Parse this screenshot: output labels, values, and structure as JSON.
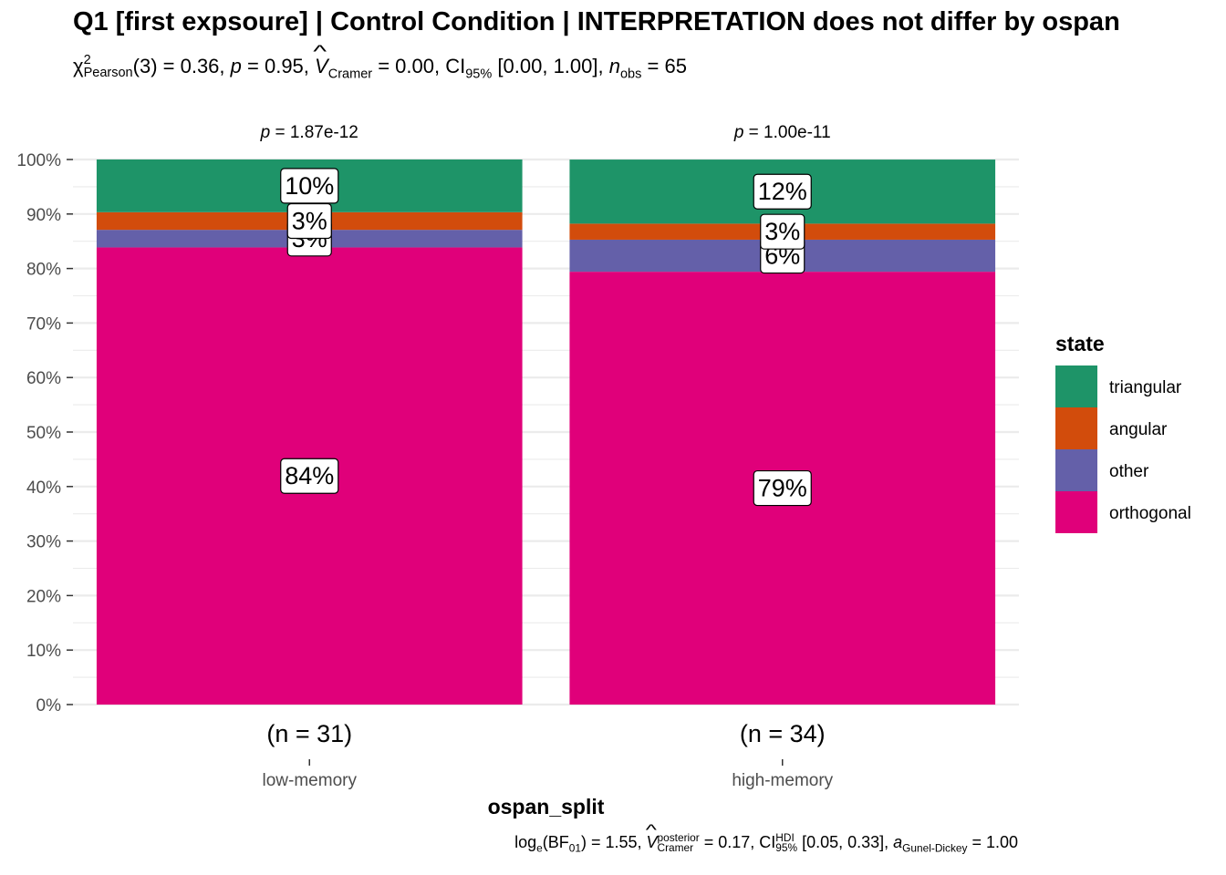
{
  "title": "Q1 [first expsoure] | Control Condition | INTERPRETATION does not differ by ospan",
  "subtitle": {
    "chi_label": "χ",
    "chi_sup": "2",
    "chi_sub": "Pearson",
    "df": "(3) = 0.36, ",
    "p_sym": "p",
    "p_val": " = 0.95, ",
    "v_sym": "V",
    "v_sub": "Cramer",
    "v_val": " = 0.00, CI",
    "ci_sub": "95%",
    "ci_val": " [0.00, 1.00], ",
    "n_sym": "n",
    "n_sub": "obs",
    "n_val": " = 65"
  },
  "caption": {
    "log_label": "log",
    "log_sub": "e",
    "bf_open": "(BF",
    "bf_sub": "01",
    "bf_val": ") = 1.55, ",
    "v_sym": "V",
    "v_sup": "posterior",
    "v_sub": "Cramer",
    "v_val": " = 0.17, CI",
    "ci_sup": "HDI",
    "ci_sub": "95%",
    "ci_val": " [0.05, 0.33], ",
    "a_sym": "a",
    "a_sub": "Gunel-Dickey",
    "a_val": " = 1.00"
  },
  "chart_data": {
    "type": "bar",
    "stacked": true,
    "percent": true,
    "categories": [
      "low-memory",
      "high-memory"
    ],
    "n_labels": [
      "(n = 31)",
      "(n = 34)"
    ],
    "p_labels": [
      {
        "sym": "p",
        "val": " = 1.87e-12"
      },
      {
        "sym": "p",
        "val": " = 1.00e-11"
      }
    ],
    "series": [
      {
        "name": "orthogonal",
        "color": "#E7298A",
        "fill": "#E0007A",
        "values": [
          84,
          79
        ],
        "labels": [
          "84%",
          "79%"
        ]
      },
      {
        "name": "other",
        "color": "#6460A9",
        "values": [
          3,
          6
        ],
        "labels": [
          "3%",
          "6%"
        ]
      },
      {
        "name": "angular",
        "color": "#D24C0C",
        "values": [
          3,
          3
        ],
        "labels": [
          "3%",
          "3%"
        ]
      },
      {
        "name": "triangular",
        "color": "#1E9468",
        "values": [
          10,
          12
        ],
        "labels": [
          "10%",
          "12%"
        ]
      }
    ],
    "exact_values": [
      [
        83.87,
        3.23,
        3.23,
        9.68
      ],
      [
        79.41,
        5.88,
        2.94,
        11.76
      ]
    ],
    "yticks": [
      "0%",
      "10%",
      "20%",
      "30%",
      "40%",
      "50%",
      "60%",
      "70%",
      "80%",
      "90%",
      "100%"
    ],
    "ylim": [
      0,
      100
    ],
    "xlabel": "ospan_split",
    "ylabel": "",
    "legend": {
      "title": "state",
      "position": "right",
      "order": [
        "triangular",
        "angular",
        "other",
        "orthogonal"
      ]
    }
  }
}
